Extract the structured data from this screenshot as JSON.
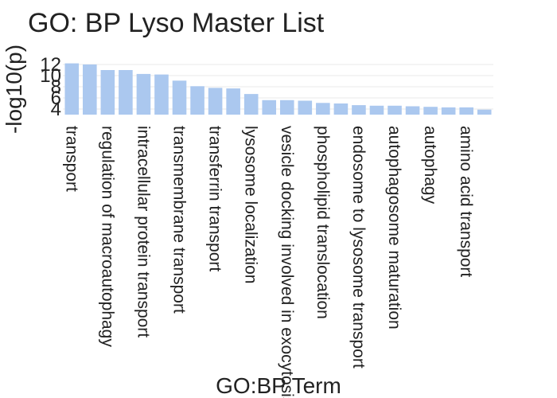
{
  "chart_data": {
    "type": "bar",
    "title": "GO: BP Lyso Master List",
    "xlabel": "GO:BP Term",
    "ylabel": "-log10(p)",
    "bar_color": "#abc8ef",
    "yticks": [
      4,
      6,
      8,
      10,
      12
    ],
    "ylim": [
      3,
      13
    ],
    "grid": true,
    "categories": [
      "transport",
      "",
      "regulation of macroautophagy",
      "",
      "intracellular protein transport",
      "",
      "transmembrane transport",
      "",
      "transferrin transport",
      "",
      "lysosome localization",
      "",
      "vesicle docking involved in exocytosis",
      "",
      "phospholipid translocation",
      "",
      "endosome to lysosome transport",
      "",
      "autophagosome maturation",
      "",
      "autophagy",
      "",
      "amino acid transport",
      ""
    ],
    "values": [
      12.2,
      12.0,
      11.0,
      11.0,
      10.3,
      10.2,
      9.1,
      8.1,
      7.8,
      7.7,
      6.7,
      5.6,
      5.6,
      5.5,
      5.1,
      5.0,
      4.7,
      4.6,
      4.6,
      4.5,
      4.4,
      4.3,
      4.3,
      3.9
    ]
  }
}
